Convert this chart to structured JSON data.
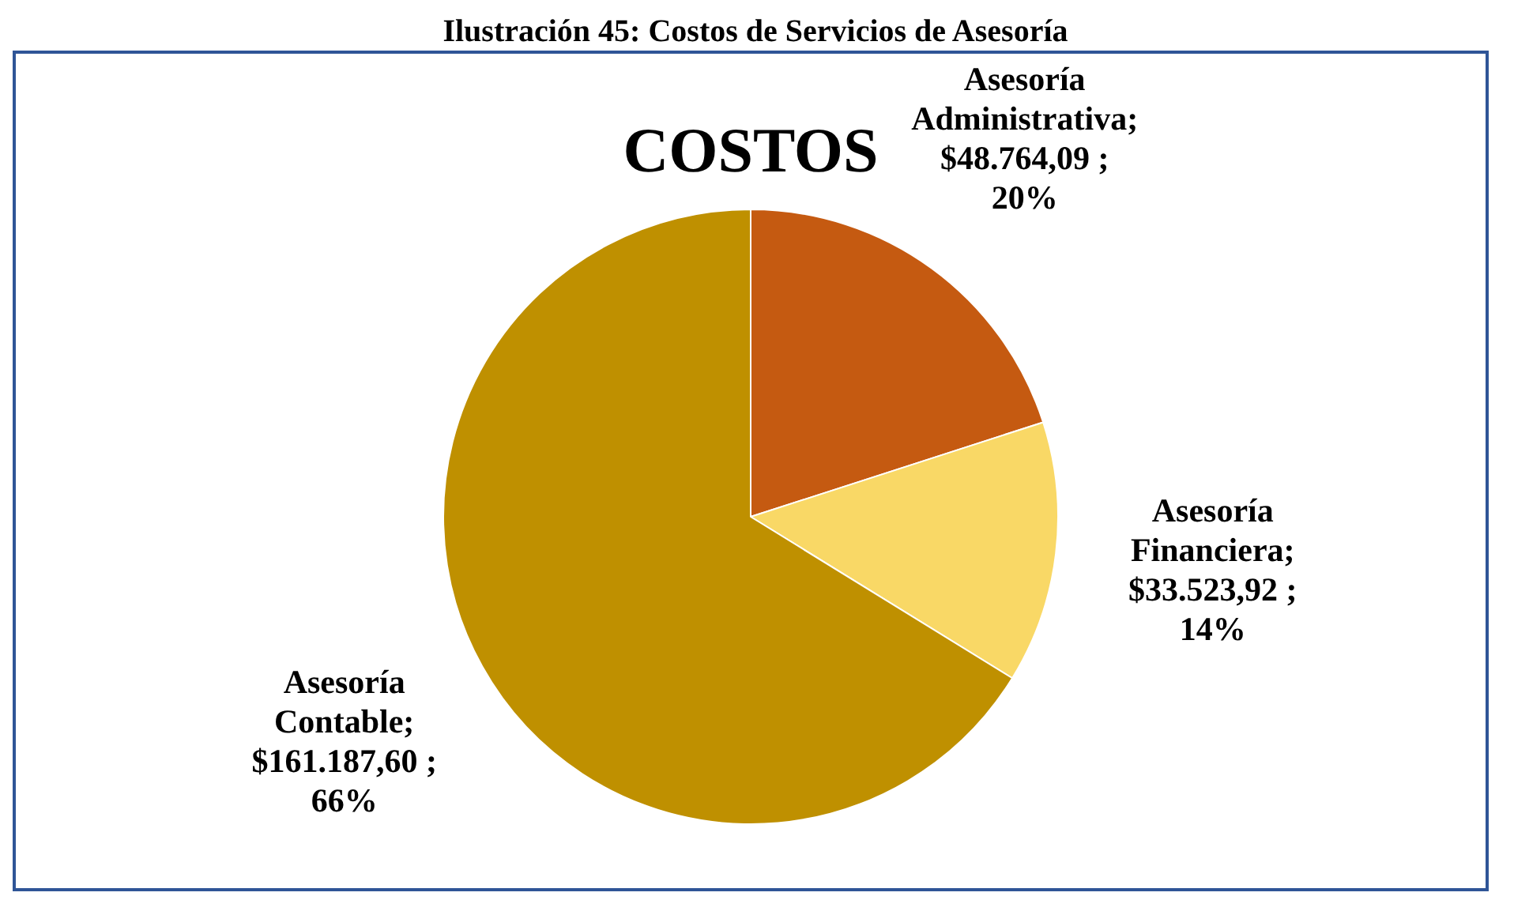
{
  "chart_data": {
    "type": "pie",
    "title": "COSTOS",
    "annotations": [
      "Ilustración 45: Costos de Servicios de Asesoría"
    ],
    "categories": [
      "Asesoría Administrativa",
      "Asesoría Financiera",
      "Asesoría Contable"
    ],
    "values": [
      48764.09,
      33523.92,
      161187.6
    ],
    "value_labels": [
      "; $48.764,09 ; 20%",
      "; $33.523,92 ; 14%",
      "; $161.187,60 ; 66%"
    ],
    "colors": [
      "#c55a11",
      "#f9d866",
      "#bf9000"
    ],
    "legend": false
  }
}
